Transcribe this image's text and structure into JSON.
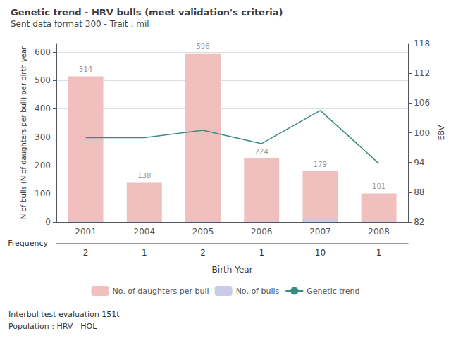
{
  "chart_data": {
    "type": "bar",
    "title": "Genetic trend - HRV bulls (meet validation's criteria)",
    "subtitle": "Sent data format 300 - Trait : mil",
    "xlabel": "Birth Year",
    "ylabel": "N of bulls (N of daughters per bull) per birth year",
    "y2label": "EBV",
    "categories": [
      "2001",
      "2004",
      "2005",
      "2006",
      "2007",
      "2008"
    ],
    "series": [
      {
        "name": "No. of daughters per bull",
        "type": "bar",
        "color": "#f2bfbf",
        "values": [
          514,
          138,
          596,
          224,
          179,
          101
        ],
        "data_labels": true
      },
      {
        "name": "No. of bulls",
        "type": "bar",
        "color": "#c8cce8",
        "values": [
          2,
          1,
          2,
          1,
          10,
          1
        ]
      },
      {
        "name": "Genetic trend",
        "type": "line",
        "color": "#3a8c80",
        "axis": "y2",
        "values": [
          99.0,
          99.0,
          100.5,
          97.8,
          104.5,
          93.8
        ]
      }
    ],
    "ylim": [
      0,
      630
    ],
    "yticks": [
      0,
      100,
      200,
      300,
      400,
      500,
      600
    ],
    "y2lim": [
      82,
      118
    ],
    "y2ticks": [
      82,
      88,
      94,
      100,
      106,
      112,
      118
    ],
    "grid": true,
    "legend": "bottom",
    "frequency": {
      "label": "Frequency",
      "values": [
        2,
        1,
        2,
        1,
        10,
        1
      ]
    },
    "footer": [
      "Interbul test evaluation 151t",
      "Population : HRV - HOL"
    ]
  }
}
